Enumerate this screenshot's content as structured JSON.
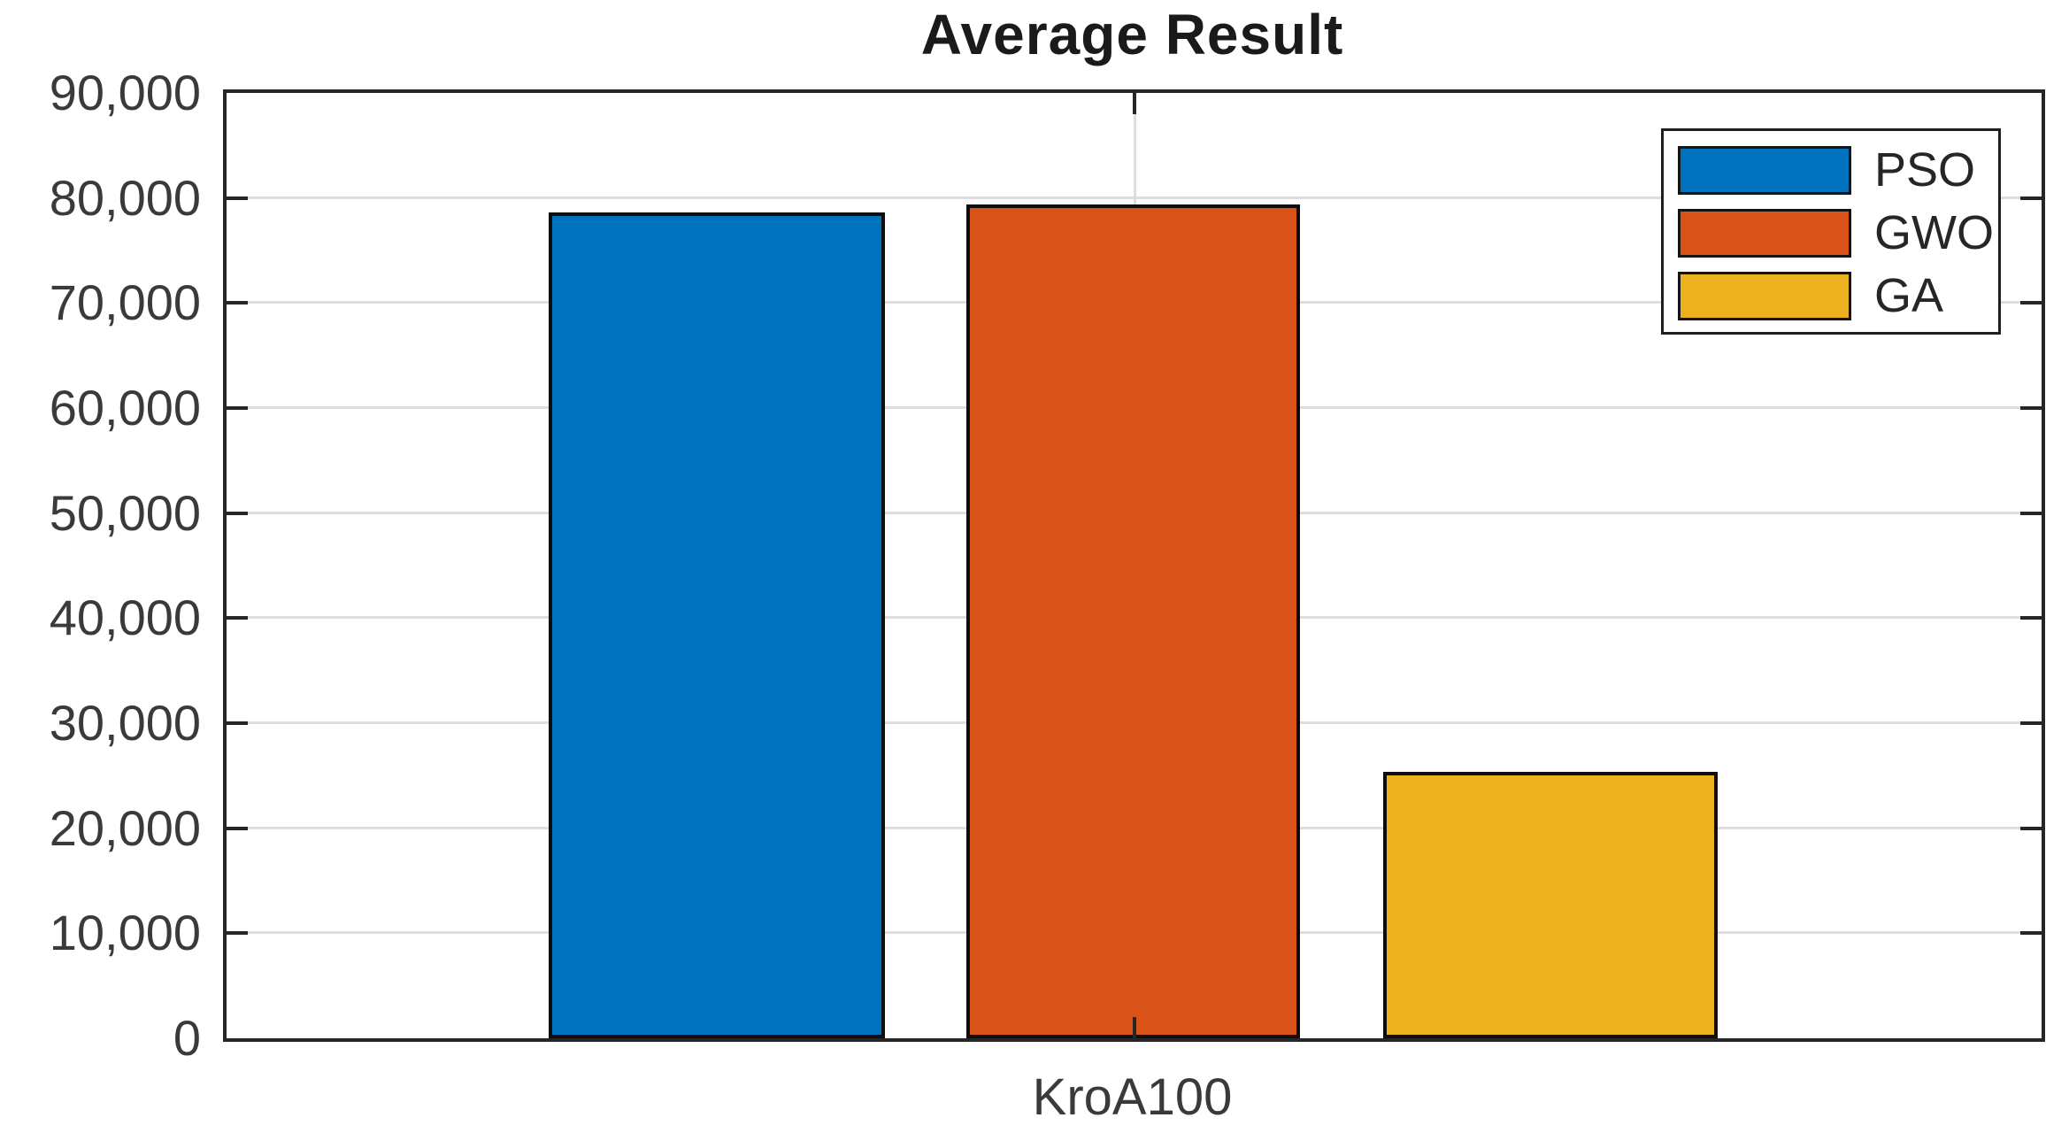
{
  "title": "Average Result",
  "chart_data": {
    "type": "bar",
    "title": "Average Result",
    "categories": [
      "KroA100"
    ],
    "series": [
      {
        "name": "PSO",
        "values": [
          78600
        ],
        "color": "#0072BD"
      },
      {
        "name": "GWO",
        "values": [
          79400
        ],
        "color": "#D95319"
      },
      {
        "name": "GA",
        "values": [
          25400
        ],
        "color": "#EDB120"
      }
    ],
    "xlabel": "",
    "ylabel": "",
    "ylim": [
      0,
      90000
    ],
    "yticks": [
      0,
      10000,
      20000,
      30000,
      40000,
      50000,
      60000,
      70000,
      80000,
      90000
    ],
    "ytick_labels": [
      "0",
      "10,000",
      "20,000",
      "30,000",
      "40,000",
      "50,000",
      "60,000",
      "70,000",
      "80,000",
      "90,000"
    ],
    "grid": true,
    "legend_position": "northeast"
  },
  "legend": {
    "items": [
      {
        "label": "PSO"
      },
      {
        "label": "GWO"
      },
      {
        "label": "GA"
      }
    ]
  }
}
